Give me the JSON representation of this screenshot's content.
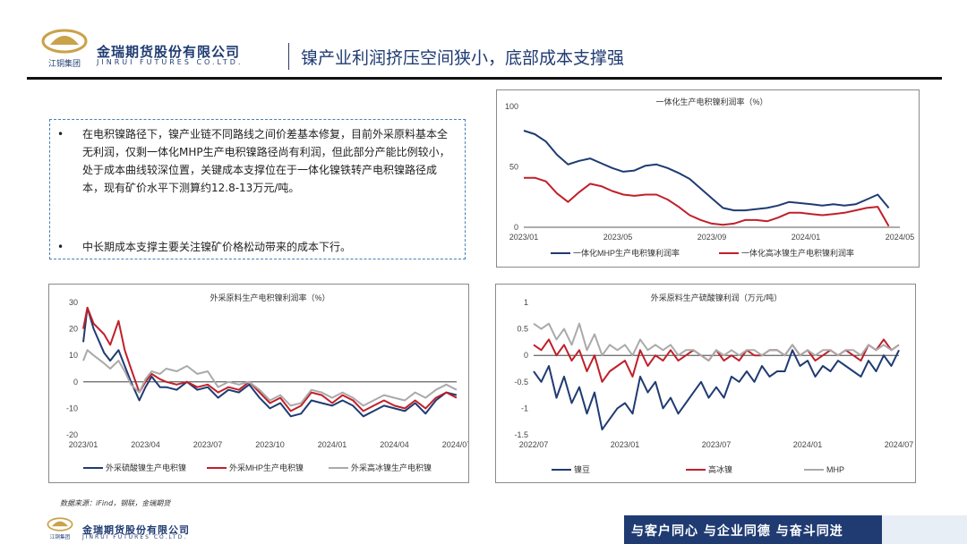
{
  "header": {
    "brand_cn": "金瑞期货股份有限公司",
    "brand_en": "JINRUI FUTURES CO.LTD.",
    "logo_sub": "江铜集团",
    "title": "镍产业利润挤压空间狭小，底部成本支撑强"
  },
  "summary": {
    "bullet_symbol": "•",
    "items": [
      "在电积镍路径下，镍产业链不同路线之间价差基本修复，目前外采原料基本全无利润，仅剩一体化MHP生产电积镍路径尚有利润，但此部分产能比例较小，处于成本曲线较深位置，关键成本支撑位在于一体化镍铁转产电积镍路径成本，现有矿价水平下测算约12.8-13万元/吨。",
      "中长期成本支撑主要关注镍矿价格松动带来的成本下行。"
    ]
  },
  "chart_data": [
    {
      "type": "line",
      "title": "一体化生产电积镍利润率（%）",
      "x_ticks": [
        "2023/01",
        "2023/05",
        "2023/09",
        "2024/01",
        "2024/05"
      ],
      "y_ticks": [
        "0",
        "50",
        "100"
      ],
      "ylim": [
        0,
        100
      ],
      "x_range": [
        0,
        17
      ],
      "legend_position": "bottom",
      "series": [
        {
          "name": "一体化MHP生产电积镍利润率",
          "color": "#1f3b72",
          "x": [
            0,
            0.5,
            1,
            1.5,
            2,
            2.5,
            3,
            3.5,
            4,
            4.5,
            5,
            5.5,
            6,
            6.5,
            7,
            7.5,
            8,
            8.5,
            9,
            9.5,
            10,
            10.5,
            11,
            11.5,
            12,
            12.5,
            13,
            13.5,
            14,
            14.5,
            15,
            15.5,
            16,
            16.5
          ],
          "values": [
            80,
            77,
            71,
            60,
            52,
            55,
            57,
            53,
            49,
            46,
            47,
            51,
            52,
            49,
            45,
            40,
            32,
            24,
            16,
            14,
            14,
            15,
            16,
            18,
            21,
            20,
            19,
            18,
            19,
            18,
            19,
            23,
            27,
            16
          ]
        },
        {
          "name": "一体化高冰镍生产电积镍利润率",
          "color": "#c0202a",
          "x": [
            0,
            0.5,
            1,
            1.5,
            2,
            2.5,
            3,
            3.5,
            4,
            4.5,
            5,
            5.5,
            6,
            6.5,
            7,
            7.5,
            8,
            8.5,
            9,
            9.5,
            10,
            10.5,
            11,
            11.5,
            12,
            12.5,
            13,
            13.5,
            14,
            14.5,
            15,
            15.5,
            16,
            16.5
          ],
          "values": [
            41,
            41,
            38,
            28,
            21,
            29,
            36,
            34,
            30,
            27,
            26,
            27,
            27,
            23,
            17,
            10,
            6,
            3,
            2,
            3,
            6,
            6,
            5,
            8,
            12,
            12,
            11,
            10,
            11,
            12,
            14,
            16,
            17,
            1
          ]
        }
      ]
    },
    {
      "type": "line",
      "title": "外采原料生产电积镍利润率（%）",
      "x_ticks": [
        "2023/01",
        "2023/04",
        "2023/07",
        "2023/10",
        "2024/01",
        "2024/04",
        "2024/07"
      ],
      "y_ticks": [
        "-20",
        "-10",
        "0",
        "10",
        "20",
        "30"
      ],
      "ylim": [
        -20,
        30
      ],
      "x_range": [
        0,
        18
      ],
      "legend_position": "bottom",
      "series": [
        {
          "name": "外采硫酸镍生产电积镍",
          "color": "#1f3b72",
          "x": [
            0,
            0.2,
            0.5,
            1,
            1.3,
            1.7,
            2,
            2.3,
            2.7,
            3,
            3.3,
            3.7,
            4,
            4.5,
            5,
            5.5,
            6,
            6.5,
            7,
            7.5,
            8,
            8.5,
            9,
            9.5,
            10,
            10.5,
            11,
            11.5,
            12,
            12.5,
            13,
            13.5,
            14,
            14.5,
            15,
            15.5,
            16,
            16.5,
            17,
            17.5,
            18
          ],
          "values": [
            15,
            28,
            20,
            11,
            8,
            12,
            6,
            0,
            -7,
            -2,
            2,
            -2,
            -2,
            -3,
            0,
            -3,
            -2,
            -6,
            -3,
            -4,
            -1,
            -6,
            -10,
            -8,
            -13,
            -12,
            -7,
            -8,
            -9,
            -7,
            -9,
            -13,
            -11,
            -9,
            -10,
            -11,
            -8,
            -12,
            -7,
            -4,
            -5
          ]
        },
        {
          "name": "外采MHP生产电积镍",
          "color": "#c0202a",
          "x": [
            0,
            0.2,
            0.5,
            1,
            1.3,
            1.7,
            2,
            2.3,
            2.7,
            3,
            3.3,
            3.7,
            4,
            4.5,
            5,
            5.5,
            6,
            6.5,
            7,
            7.5,
            8,
            8.5,
            9,
            9.5,
            10,
            10.5,
            11,
            11.5,
            12,
            12.5,
            13,
            13.5,
            14,
            14.5,
            15,
            15.5,
            16,
            16.5,
            17,
            17.5,
            18
          ],
          "values": [
            20,
            28,
            22,
            18,
            14,
            23,
            12,
            5,
            -4,
            0,
            3,
            1,
            0,
            -1,
            0,
            -2,
            -1,
            -4,
            -2,
            -3,
            0,
            -4,
            -8,
            -6,
            -11,
            -9,
            -4,
            -5,
            -8,
            -5,
            -7,
            -11,
            -9,
            -7,
            -9,
            -10,
            -7,
            -10,
            -6,
            -4,
            -6
          ]
        },
        {
          "name": "外采高冰镍生产电积镍",
          "color": "#aaaaaa",
          "x": [
            0,
            0.2,
            0.5,
            1,
            1.3,
            1.7,
            2,
            2.3,
            2.7,
            3,
            3.3,
            3.7,
            4,
            4.5,
            5,
            5.5,
            6,
            6.5,
            7,
            7.5,
            8,
            8.5,
            9,
            9.5,
            10,
            10.5,
            11,
            11.5,
            12,
            12.5,
            13,
            13.5,
            14,
            14.5,
            15,
            15.5,
            16,
            16.5,
            17,
            17.5,
            18
          ],
          "values": [
            8,
            12,
            10,
            7,
            5,
            8,
            4,
            -1,
            -4,
            1,
            4,
            3,
            5,
            4,
            6,
            3,
            4,
            -2,
            0,
            -1,
            0,
            -3,
            -7,
            -5,
            -9,
            -8,
            -3,
            -4,
            -6,
            -4,
            -6,
            -9,
            -7,
            -5,
            -6,
            -7,
            -4,
            -6,
            -3,
            -1,
            -3
          ]
        }
      ]
    },
    {
      "type": "line",
      "title": "外采原料生产硫酸镍利润（万元/吨）",
      "x_ticks": [
        "2022/07",
        "2023/01",
        "2023/07",
        "2024/01",
        "2024/07"
      ],
      "y_ticks": [
        "-1.5",
        "-1",
        "-0.5",
        "0",
        "0.5",
        "1"
      ],
      "ylim": [
        -1.5,
        1
      ],
      "x_range": [
        0,
        24
      ],
      "legend_position": "bottom",
      "series": [
        {
          "name": "镍豆",
          "color": "#1f3b72",
          "x": [
            0,
            0.5,
            1,
            1.5,
            2,
            2.5,
            3,
            3.5,
            4,
            4.5,
            5,
            5.5,
            6,
            6.5,
            7,
            7.5,
            8,
            8.5,
            9,
            9.5,
            10,
            10.5,
            11,
            11.5,
            12,
            12.5,
            13,
            13.5,
            14,
            14.5,
            15,
            15.5,
            16,
            16.5,
            17,
            17.5,
            18,
            18.5,
            19,
            19.5,
            20,
            20.5,
            21,
            21.5,
            22,
            22.5,
            23,
            23.5,
            24
          ],
          "values": [
            -0.3,
            -0.5,
            -0.2,
            -0.8,
            -0.4,
            -0.9,
            -0.6,
            -1.1,
            -0.7,
            -1.4,
            -1.2,
            -1.0,
            -0.9,
            -1.1,
            -0.4,
            -0.7,
            -0.5,
            -1.0,
            -0.8,
            -1.1,
            -0.9,
            -0.7,
            -0.5,
            -0.8,
            -0.6,
            -0.8,
            -0.4,
            -0.5,
            -0.3,
            -0.5,
            -0.2,
            -0.4,
            -0.3,
            -0.3,
            0.1,
            -0.2,
            -0.1,
            -0.4,
            -0.2,
            -0.3,
            -0.1,
            -0.2,
            -0.3,
            -0.4,
            -0.1,
            -0.3,
            0.0,
            -0.2,
            0.1
          ]
        },
        {
          "name": "高冰镍",
          "color": "#c0202a",
          "x": [
            0,
            0.5,
            1,
            1.5,
            2,
            2.5,
            3,
            3.5,
            4,
            4.5,
            5,
            5.5,
            6,
            6.5,
            7,
            7.5,
            8,
            8.5,
            9,
            9.5,
            10,
            10.5,
            11,
            11.5,
            12,
            12.5,
            13,
            13.5,
            14,
            14.5,
            15,
            15.5,
            16,
            16.5,
            17,
            17.5,
            18,
            18.5,
            19,
            19.5,
            20,
            20.5,
            21,
            21.5,
            22,
            22.5,
            23,
            23.5,
            24
          ],
          "values": [
            0.2,
            0.1,
            0.3,
            0.0,
            0.2,
            -0.1,
            0.1,
            -0.3,
            0.0,
            -0.5,
            -0.3,
            -0.2,
            -0.1,
            -0.4,
            0.1,
            -0.2,
            0.0,
            -0.1,
            0.1,
            -0.1,
            0.0,
            0.1,
            0.0,
            -0.1,
            0.1,
            -0.1,
            0.0,
            -0.1,
            0.1,
            0.0,
            0.0,
            0.1,
            0.1,
            0.0,
            0.2,
            0.0,
            0.1,
            -0.1,
            0.0,
            0.1,
            0.0,
            0.1,
            0.0,
            -0.1,
            0.2,
            0.1,
            0.3,
            0.1,
            0.2
          ]
        },
        {
          "name": "MHP",
          "color": "#aaaaaa",
          "x": [
            0,
            0.5,
            1,
            1.5,
            2,
            2.5,
            3,
            3.5,
            4,
            4.5,
            5,
            5.5,
            6,
            6.5,
            7,
            7.5,
            8,
            8.5,
            9,
            9.5,
            10,
            10.5,
            11,
            11.5,
            12,
            12.5,
            13,
            13.5,
            14,
            14.5,
            15,
            15.5,
            16,
            16.5,
            17,
            17.5,
            18,
            18.5,
            19,
            19.5,
            20,
            20.5,
            21,
            21.5,
            22,
            22.5,
            23,
            23.5,
            24
          ],
          "values": [
            0.6,
            0.5,
            0.6,
            0.3,
            0.5,
            0.2,
            0.6,
            0.1,
            0.4,
            0.0,
            0.2,
            0.1,
            0.2,
            0.0,
            0.3,
            0.1,
            0.2,
            0.1,
            0.2,
            0.0,
            0.1,
            0.1,
            0.0,
            -0.1,
            0.1,
            0.0,
            0.1,
            0.0,
            0.1,
            0.1,
            0.0,
            0.1,
            0.1,
            0.0,
            0.2,
            0.0,
            0.1,
            0.0,
            0.1,
            0.1,
            0.0,
            0.1,
            0.1,
            0.0,
            0.2,
            0.1,
            0.2,
            0.1,
            0.2
          ]
        }
      ]
    }
  ],
  "source_note": "数据来源：iFind，钢联，金瑞期货",
  "footer": {
    "brand_cn": "金瑞期货股份有限公司",
    "brand_en": "JINRUI FUTURES CO.LTD.",
    "logo_sub": "江铜集团",
    "slogan": "与客户同心 与企业同德 与奋斗同进"
  },
  "colors": {
    "brand_blue": "#1f3b72",
    "red": "#c0202a",
    "grey": "#aaaaaa"
  }
}
